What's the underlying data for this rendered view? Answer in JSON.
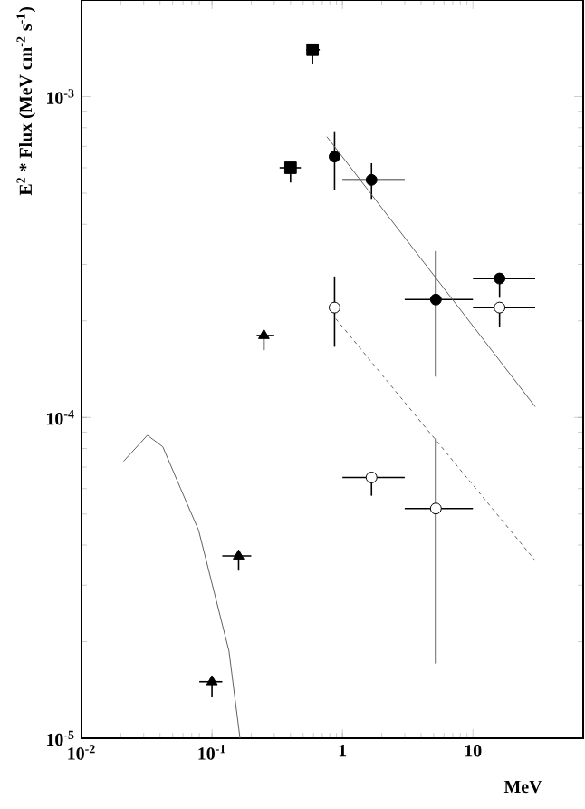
{
  "chart_data": {
    "type": "scatter",
    "xlabel": "MeV",
    "ylabel": "E$^{2}$ * Flux (MeV cm$^{-2}$ s$^{-1}$)",
    "log": "xy",
    "xlim": [
      0.01,
      70
    ],
    "ylim": [
      1e-05,
      0.002
    ],
    "xticks": [
      {
        "value": 0.01,
        "label": "10$^{-2}$"
      },
      {
        "value": 0.1,
        "label": "10$^{-1}$"
      },
      1,
      10
    ],
    "yticks": [
      {
        "value": 1e-05,
        "label": "10$^{-5}$"
      },
      {
        "value": 0.0001,
        "label": "10$^{-4}$"
      },
      {
        "value": 0.001,
        "label": "10$^{-3}$"
      }
    ],
    "series": [
      {
        "marker": "square",
        "color": "#000000",
        "x": [
          0.59,
          0.4
        ],
        "values": [
          0.0014,
          0.0006
        ],
        "errors": [
          [
            0.00126,
            0.0014
          ],
          [
            0.00054,
            0.0006
          ]
        ],
        "xerrors": [
          [
            0.53,
            0.67
          ],
          [
            0.33,
            0.48
          ]
        ]
      },
      {
        "marker": "triangle",
        "color": "#000000",
        "x": [
          0.25,
          0.16,
          0.1
        ],
        "values": [
          0.00018,
          3.7e-05,
          1.5e-05
        ],
        "errors": [
          [
            0.000162,
            0.00018
          ],
          [
            3.33e-05,
            3.7e-05
          ],
          [
            1.35e-05,
            1.5e-05
          ]
        ],
        "xerrors": [
          [
            0.22,
            0.3
          ],
          [
            0.12,
            0.2
          ],
          [
            0.08,
            0.12
          ]
        ]
      },
      {
        "marker": "circle",
        "color": "#000000",
        "x": [
          0.87,
          1.67,
          5.2,
          16
        ],
        "values": [
          0.00065,
          0.00055,
          0.000233,
          0.000271
        ],
        "errors": [
          [
            0.00051,
            0.00078
          ],
          [
            0.00048,
            0.00062
          ],
          [
            0.000134,
            0.00033
          ],
          [
            0.000236,
            0.000271
          ]
        ],
        "xerrors": [
          null,
          [
            1.0,
            3.0
          ],
          [
            3.0,
            10
          ],
          [
            10,
            30
          ]
        ]
      },
      {
        "marker": "circle",
        "color": "#ffffff",
        "x": [
          0.87,
          1.67,
          5.2,
          16
        ],
        "values": [
          0.00022,
          6.5e-05,
          5.2e-05,
          0.00022
        ],
        "errors": [
          [
            0.000166,
            0.000275
          ],
          [
            5.7e-05,
            6.5e-05
          ],
          [
            1.71e-05,
            8.6e-05
          ],
          [
            0.000191,
            0.00022
          ]
        ],
        "xerrors": [
          null,
          [
            1.0,
            3.0
          ],
          [
            3.0,
            10
          ],
          [
            10,
            30
          ]
        ]
      },
      {
        "type": "line",
        "marker": "none",
        "line_style": "solid",
        "color": "#606060",
        "x": [
          0.76,
          30
        ],
        "values": [
          0.00075,
          0.000108
        ]
      },
      {
        "type": "line",
        "marker": "none",
        "line_style": "dashed",
        "color": "#606060",
        "x": [
          0.89,
          30
        ],
        "values": [
          0.000203,
          3.58e-05
        ]
      },
      {
        "type": "line",
        "marker": "none",
        "line_style": "solid",
        "color": "#606060",
        "x": [
          0.021,
          0.032,
          0.042,
          0.0575,
          0.079,
          0.098,
          0.135,
          0.164
        ],
        "values": [
          7.3e-05,
          8.8e-05,
          8.1e-05,
          6e-05,
          4.45e-05,
          3.14e-05,
          1.87e-05,
          1e-05
        ]
      }
    ]
  }
}
